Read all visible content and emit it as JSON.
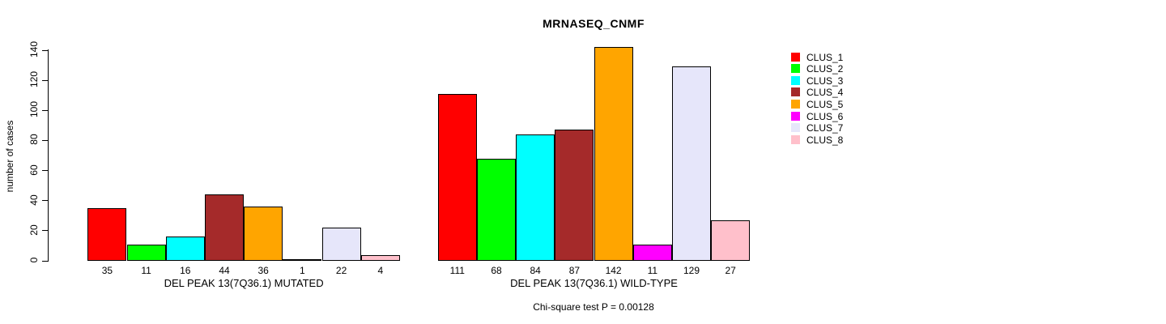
{
  "chart_data": {
    "type": "bar",
    "title": "MRNASEQ_CNMF",
    "xlabel": "",
    "ylabel": "number of cases",
    "ylim": [
      0,
      140
    ],
    "yticks": [
      0,
      20,
      40,
      60,
      80,
      100,
      120,
      140
    ],
    "grid": false,
    "legend_position": "right",
    "legend_labels": [
      "CLUS_1",
      "CLUS_2",
      "CLUS_3",
      "CLUS_4",
      "CLUS_5",
      "CLUS_6",
      "CLUS_7",
      "CLUS_8"
    ],
    "colors": [
      "#FF0000",
      "#00FF00",
      "#00FFFF",
      "#A52A2A",
      "#FFA500",
      "#FF00FF",
      "#E6E6FA",
      "#FFC0CB"
    ],
    "groups": [
      {
        "label": "DEL PEAK 13(7Q36.1) MUTATED",
        "values": [
          35,
          11,
          16,
          44,
          36,
          1,
          22,
          4
        ]
      },
      {
        "label": "DEL PEAK 13(7Q36.1) WILD-TYPE",
        "values": [
          111,
          68,
          84,
          87,
          142,
          11,
          129,
          27
        ]
      }
    ],
    "annotation": "Chi-square test P = 0.00128"
  }
}
